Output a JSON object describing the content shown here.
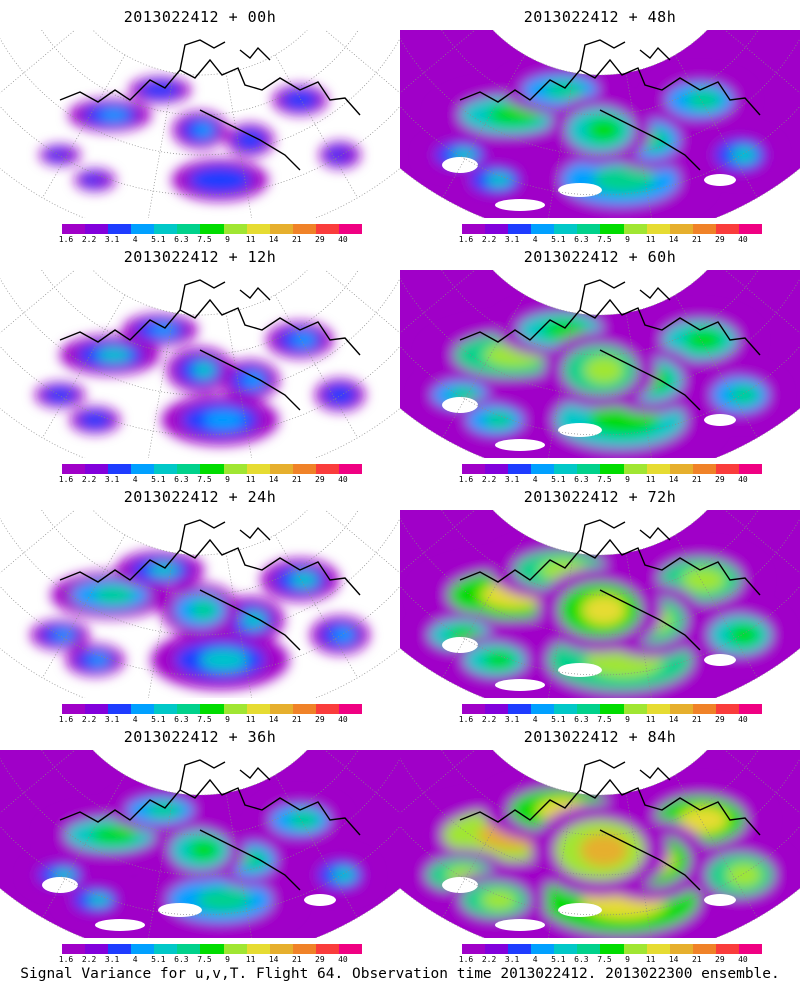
{
  "footer": "Signal Variance for u,v,T. Flight 64. Observation time 2013022412. 2013022300 ensemble.",
  "colorbar": {
    "colors": [
      "#a000c8",
      "#8200dc",
      "#1e3cff",
      "#00a0ff",
      "#00c8c8",
      "#00d28c",
      "#00dc00",
      "#a0e632",
      "#e6dc32",
      "#e6af2d",
      "#f08228",
      "#fa3c3c",
      "#f00082"
    ],
    "ticks": [
      "1.6",
      "2.2",
      "3.1",
      "4",
      "5.1",
      "6.3",
      "7.5",
      "9",
      "11",
      "14",
      "21",
      "29",
      "40"
    ]
  },
  "chart_data": [
    {
      "type": "heatmap",
      "title": "2013022412 + 00h",
      "lead_hours": 0,
      "variable": "Signal Variance for u,v,T",
      "levels": [
        1.6,
        2.2,
        3.1,
        4,
        5.1,
        6.3,
        7.5,
        9,
        11,
        14,
        21,
        29,
        40
      ]
    },
    {
      "type": "heatmap",
      "title": "2013022412 + 48h",
      "lead_hours": 48,
      "variable": "Signal Variance for u,v,T",
      "levels": [
        1.6,
        2.2,
        3.1,
        4,
        5.1,
        6.3,
        7.5,
        9,
        11,
        14,
        21,
        29,
        40
      ]
    },
    {
      "type": "heatmap",
      "title": "2013022412 + 12h",
      "lead_hours": 12,
      "variable": "Signal Variance for u,v,T",
      "levels": [
        1.6,
        2.2,
        3.1,
        4,
        5.1,
        6.3,
        7.5,
        9,
        11,
        14,
        21,
        29,
        40
      ]
    },
    {
      "type": "heatmap",
      "title": "2013022412 + 60h",
      "lead_hours": 60,
      "variable": "Signal Variance for u,v,T",
      "levels": [
        1.6,
        2.2,
        3.1,
        4,
        5.1,
        6.3,
        7.5,
        9,
        11,
        14,
        21,
        29,
        40
      ]
    },
    {
      "type": "heatmap",
      "title": "2013022412 + 24h",
      "lead_hours": 24,
      "variable": "Signal Variance for u,v,T",
      "levels": [
        1.6,
        2.2,
        3.1,
        4,
        5.1,
        6.3,
        7.5,
        9,
        11,
        14,
        21,
        29,
        40
      ]
    },
    {
      "type": "heatmap",
      "title": "2013022412 + 72h",
      "lead_hours": 72,
      "variable": "Signal Variance for u,v,T",
      "levels": [
        1.6,
        2.2,
        3.1,
        4,
        5.1,
        6.3,
        7.5,
        9,
        11,
        14,
        21,
        29,
        40
      ]
    },
    {
      "type": "heatmap",
      "title": "2013022412 + 36h",
      "lead_hours": 36,
      "variable": "Signal Variance for u,v,T",
      "levels": [
        1.6,
        2.2,
        3.1,
        4,
        5.1,
        6.3,
        7.5,
        9,
        11,
        14,
        21,
        29,
        40
      ]
    },
    {
      "type": "heatmap",
      "title": "2013022412 + 84h",
      "lead_hours": 84,
      "variable": "Signal Variance for u,v,T",
      "levels": [
        1.6,
        2.2,
        3.1,
        4,
        5.1,
        6.3,
        7.5,
        9,
        11,
        14,
        21,
        29,
        40
      ]
    }
  ]
}
